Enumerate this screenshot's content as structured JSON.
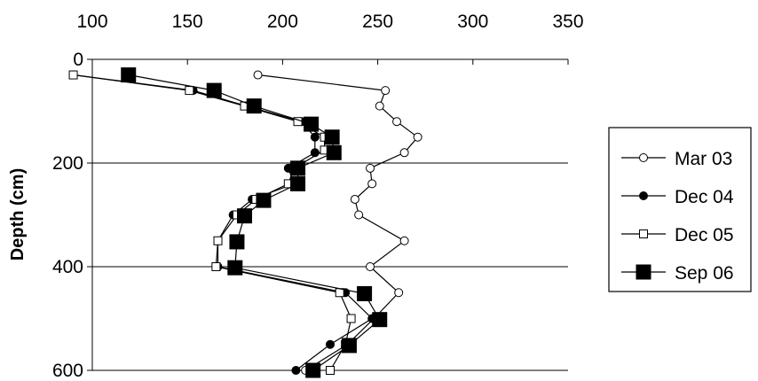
{
  "chart_data": {
    "type": "scatter",
    "title": "",
    "xlabel": "",
    "ylabel": "Depth (cm)",
    "xlim": [
      100,
      350
    ],
    "ylim": [
      600,
      0
    ],
    "x_axis_position": "top",
    "y_inverted": true,
    "xticks": [
      "100",
      "150",
      "200",
      "250",
      "300",
      "350"
    ],
    "yticks": [
      "0",
      "200",
      "400",
      "600"
    ],
    "grid": "horizontal",
    "legend_position": "right",
    "series": [
      {
        "name": "Mar 03",
        "marker": "open-circle",
        "color": "#000000",
        "points": [
          {
            "x": 187,
            "y": 30
          },
          {
            "x": 254,
            "y": 60
          },
          {
            "x": 251,
            "y": 90
          },
          {
            "x": 260,
            "y": 120
          },
          {
            "x": 271,
            "y": 150
          },
          {
            "x": 264,
            "y": 180
          },
          {
            "x": 246,
            "y": 210
          },
          {
            "x": 247,
            "y": 240
          },
          {
            "x": 238,
            "y": 270
          },
          {
            "x": 240,
            "y": 300
          },
          {
            "x": 264,
            "y": 350
          },
          {
            "x": 246,
            "y": 400
          },
          {
            "x": 261,
            "y": 450
          },
          {
            "x": 248,
            "y": 500
          },
          {
            "x": 234,
            "y": 550
          },
          {
            "x": 212,
            "y": 600
          }
        ]
      },
      {
        "name": "Dec 04",
        "marker": "filled-circle",
        "color": "#000000",
        "points": [
          {
            "x": 90,
            "y": 30
          },
          {
            "x": 153,
            "y": 60
          },
          {
            "x": 181,
            "y": 90
          },
          {
            "x": 210,
            "y": 120
          },
          {
            "x": 217,
            "y": 150
          },
          {
            "x": 217,
            "y": 180
          },
          {
            "x": 203,
            "y": 210
          },
          {
            "x": 206,
            "y": 240
          },
          {
            "x": 184,
            "y": 270
          },
          {
            "x": 174,
            "y": 300
          },
          {
            "x": 166,
            "y": 350
          },
          {
            "x": 166,
            "y": 400
          },
          {
            "x": 233,
            "y": 450
          },
          {
            "x": 247,
            "y": 500
          },
          {
            "x": 225,
            "y": 550
          },
          {
            "x": 207,
            "y": 600
          }
        ]
      },
      {
        "name": "Dec 05",
        "marker": "open-square",
        "color": "#000000",
        "points": [
          {
            "x": 90,
            "y": 30
          },
          {
            "x": 151,
            "y": 60
          },
          {
            "x": 180,
            "y": 90
          },
          {
            "x": 208,
            "y": 120
          },
          {
            "x": 222,
            "y": 150
          },
          {
            "x": 222,
            "y": 175
          },
          {
            "x": 206,
            "y": 210
          },
          {
            "x": 203,
            "y": 240
          },
          {
            "x": 186,
            "y": 270
          },
          {
            "x": 176,
            "y": 300
          },
          {
            "x": 166,
            "y": 350
          },
          {
            "x": 165,
            "y": 400
          },
          {
            "x": 230,
            "y": 450
          },
          {
            "x": 236,
            "y": 500
          },
          {
            "x": 233,
            "y": 550
          },
          {
            "x": 225,
            "y": 600
          }
        ]
      },
      {
        "name": "Sep 06",
        "marker": "filled-square",
        "color": "#000000",
        "points": [
          {
            "x": 119,
            "y": 30
          },
          {
            "x": 164,
            "y": 60
          },
          {
            "x": 185,
            "y": 90
          },
          {
            "x": 215,
            "y": 125
          },
          {
            "x": 226,
            "y": 150
          },
          {
            "x": 227,
            "y": 180
          },
          {
            "x": 208,
            "y": 210
          },
          {
            "x": 208,
            "y": 240
          },
          {
            "x": 190,
            "y": 272
          },
          {
            "x": 180,
            "y": 302
          },
          {
            "x": 176,
            "y": 352
          },
          {
            "x": 175,
            "y": 402
          },
          {
            "x": 243,
            "y": 452
          },
          {
            "x": 251,
            "y": 502
          },
          {
            "x": 235,
            "y": 552
          },
          {
            "x": 216,
            "y": 600
          }
        ]
      }
    ]
  }
}
